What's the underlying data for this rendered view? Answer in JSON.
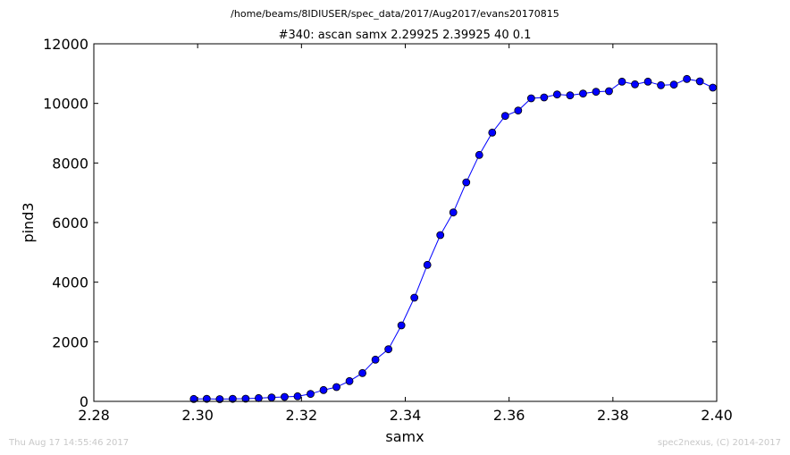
{
  "chart_data": {
    "type": "line",
    "suptitle": "/home/beams/8IDIUSER/spec_data/2017/Aug2017/evans20170815",
    "title": "#340: ascan  samx 2.29925 2.39925  40 0.1",
    "xlabel": "samx",
    "ylabel": "pind3",
    "xlim": [
      2.28,
      2.4
    ],
    "ylim": [
      0,
      12000
    ],
    "x_ticks": [
      "2.28",
      "2.30",
      "2.32",
      "2.34",
      "2.36",
      "2.38",
      "2.40"
    ],
    "y_ticks": [
      "0",
      "2000",
      "4000",
      "6000",
      "8000",
      "10000",
      "12000"
    ],
    "grid": false,
    "series": [
      {
        "color": "#0000ff",
        "marker": "circle",
        "x": [
          2.29925,
          2.30175,
          2.30425,
          2.30675,
          2.30925,
          2.31175,
          2.31425,
          2.31675,
          2.31925,
          2.32175,
          2.32425,
          2.32675,
          2.32925,
          2.33175,
          2.33425,
          2.33675,
          2.33925,
          2.34175,
          2.34425,
          2.34675,
          2.34925,
          2.35175,
          2.35425,
          2.35675,
          2.35925,
          2.36175,
          2.36425,
          2.36675,
          2.36925,
          2.37175,
          2.37425,
          2.37675,
          2.37925,
          2.38175,
          2.38425,
          2.38675,
          2.38925,
          2.39175,
          2.39425,
          2.39675,
          2.39925
        ],
        "y": [
          80,
          85,
          75,
          85,
          90,
          110,
          130,
          150,
          170,
          250,
          380,
          480,
          680,
          950,
          1400,
          1750,
          2550,
          3480,
          4580,
          5580,
          6340,
          7350,
          8270,
          9020,
          9580,
          9760,
          10170,
          10200,
          10300,
          10270,
          10330,
          10390,
          10410,
          10730,
          10640,
          10730,
          10610,
          10630,
          10820,
          10740,
          10530
        ]
      }
    ]
  },
  "footer": {
    "timestamp": "Thu Aug 17 14:55:46 2017",
    "credit": "spec2nexus, (C) 2014-2017"
  }
}
